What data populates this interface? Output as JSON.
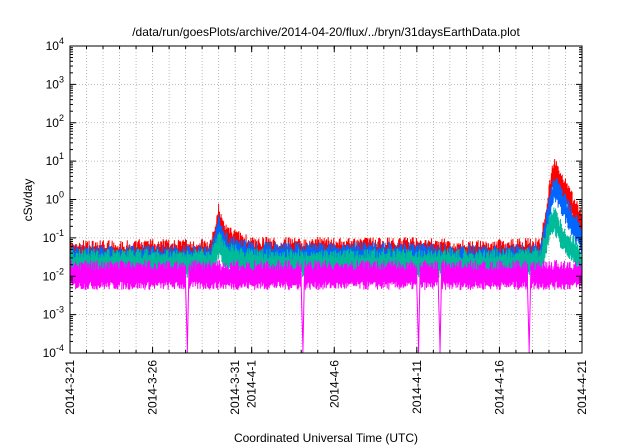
{
  "chart_data": {
    "type": "line",
    "title": "/data/run/goesPlots/archive/2014-04-20/flux/../bryn/31daysEarthData.plot",
    "xlabel": "Coordinated Universal Time (UTC)",
    "ylabel": "cSv/day",
    "yscale": "log",
    "ylim": [
      0.0001,
      10000
    ],
    "xlim": [
      "2014-03-21",
      "2014-04-21"
    ],
    "grid": true,
    "x_ticks": [
      "2014-3-21",
      "2014-3-26",
      "2014-3-31",
      "2014-4-1",
      "2014-4-6",
      "2014-4-11",
      "2014-4-16",
      "2014-4-21"
    ],
    "y_ticks": [
      {
        "value": 0.0001,
        "base": "10",
        "exp": "-4"
      },
      {
        "value": 0.001,
        "base": "10",
        "exp": "-3"
      },
      {
        "value": 0.01,
        "base": "10",
        "exp": "-2"
      },
      {
        "value": 0.1,
        "base": "10",
        "exp": "-1"
      },
      {
        "value": 1,
        "base": "10",
        "exp": "0"
      },
      {
        "value": 10,
        "base": "10",
        "exp": "1"
      },
      {
        "value": 100,
        "base": "10",
        "exp": "2"
      },
      {
        "value": 1000,
        "base": "10",
        "exp": "3"
      },
      {
        "value": 10000,
        "base": "10",
        "exp": "4"
      }
    ],
    "series": [
      {
        "color": "#ff0000",
        "x": [
          "2014-03-21",
          "2014-03-25",
          "2014-03-29.5",
          "2014-03-30.0",
          "2014-03-30.5",
          "2014-04-01",
          "2014-04-05",
          "2014-04-10",
          "2014-04-15.0",
          "2014-04-16.0",
          "2014-04-18.5",
          "2014-04-19.0",
          "2014-04-19.3",
          "2014-04-19.8",
          "2014-04-20.5",
          "2014-04-21"
        ],
        "y": [
          0.035,
          0.035,
          0.035,
          0.3,
          0.08,
          0.04,
          0.04,
          0.04,
          0.035,
          0.035,
          0.04,
          1.0,
          5.0,
          2.0,
          0.5,
          0.2
        ]
      },
      {
        "color": "#0066ff",
        "x": [
          "2014-03-21",
          "2014-03-25",
          "2014-03-29.5",
          "2014-03-30.0",
          "2014-03-30.5",
          "2014-04-01",
          "2014-04-05",
          "2014-04-10",
          "2014-04-15.0",
          "2014-04-16.0",
          "2014-04-18.5",
          "2014-04-19.0",
          "2014-04-19.3",
          "2014-04-19.8",
          "2014-04-20.5",
          "2014-04-21"
        ],
        "y": [
          0.025,
          0.025,
          0.025,
          0.15,
          0.05,
          0.03,
          0.03,
          0.03,
          0.025,
          0.025,
          0.028,
          0.5,
          2.0,
          0.8,
          0.2,
          0.08
        ]
      },
      {
        "color": "#00bb99",
        "x": [
          "2014-03-21",
          "2014-03-25",
          "2014-03-29.5",
          "2014-03-30.0",
          "2014-03-30.5",
          "2014-04-01",
          "2014-04-05",
          "2014-04-10",
          "2014-04-15.0",
          "2014-04-16.0",
          "2014-04-18.5",
          "2014-04-19.0",
          "2014-04-19.3",
          "2014-04-19.8",
          "2014-04-20.5",
          "2014-04-21"
        ],
        "y": [
          0.02,
          0.02,
          0.02,
          0.06,
          0.03,
          0.02,
          0.02,
          0.02,
          0.02,
          0.02,
          0.022,
          0.15,
          0.3,
          0.1,
          0.04,
          0.02
        ]
      },
      {
        "color": "#ff00ff",
        "x": [
          "2014-03-21",
          "2014-03-28.0",
          "2014-03-28.1",
          "2014-03-28.2",
          "2014-04-04.0",
          "2014-04-04.1",
          "2014-04-04.2",
          "2014-04-11.0",
          "2014-04-11.1",
          "2014-04-11.2",
          "2014-04-12.3",
          "2014-04-12.4",
          "2014-04-12.5",
          "2014-04-17.7",
          "2014-04-17.8",
          "2014-04-17.9",
          "2014-04-21"
        ],
        "y": [
          0.01,
          0.01,
          0.0001,
          0.01,
          0.01,
          0.0001,
          0.01,
          0.01,
          0.0001,
          0.01,
          0.01,
          0.0001,
          0.01,
          0.01,
          0.0001,
          0.01,
          0.01
        ]
      }
    ]
  }
}
